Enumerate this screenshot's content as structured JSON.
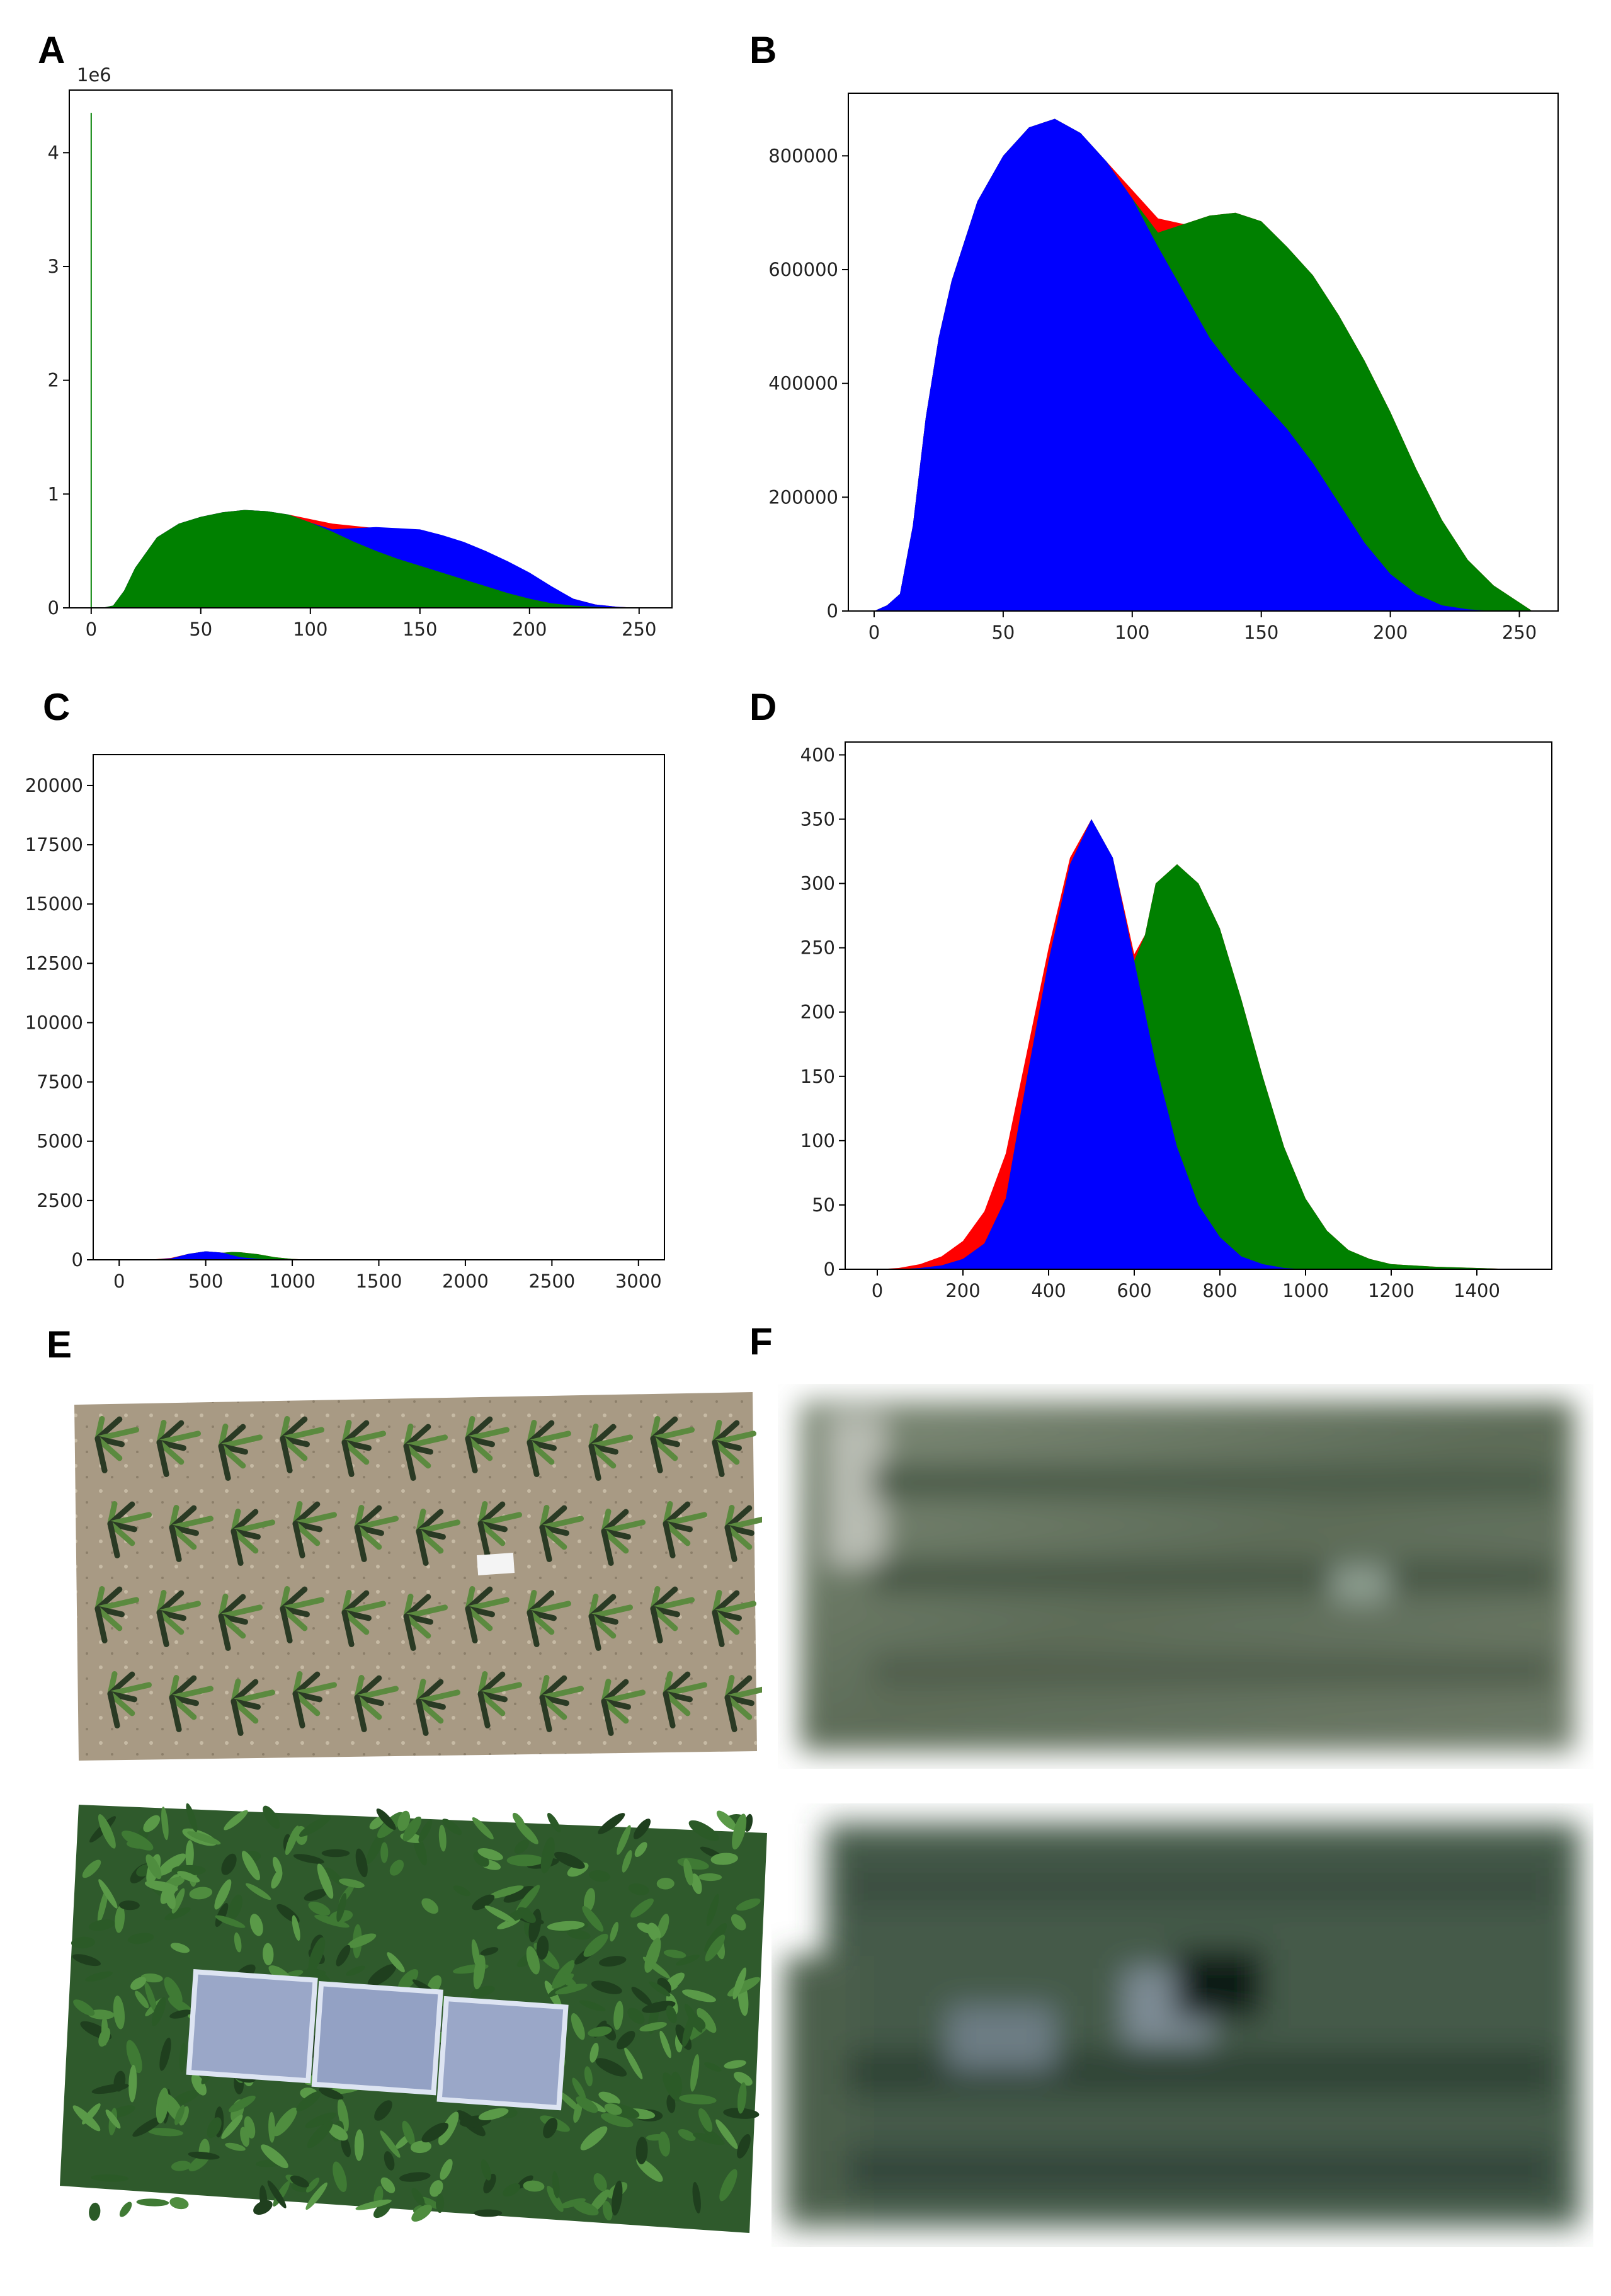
{
  "panels": {
    "A": "A",
    "B": "B",
    "C": "C",
    "D": "D",
    "E": "E",
    "F": "F"
  },
  "colors": {
    "red": "#ff0000",
    "green": "#008000",
    "blue": "#0000ff"
  },
  "chart_data": [
    {
      "panel": "A",
      "type": "area",
      "title": "",
      "xlabel": "",
      "ylabel": "",
      "offset_label": "1e6",
      "xlim": [
        -10,
        265
      ],
      "ylim": [
        0,
        4.55
      ],
      "xticks": [
        0,
        50,
        100,
        150,
        200,
        250
      ],
      "yticks": [
        0,
        1,
        2,
        3,
        4
      ],
      "grid": false,
      "spike": {
        "x": 0,
        "y": 4.35,
        "series": "green"
      },
      "x": [
        0,
        5,
        10,
        15,
        20,
        30,
        40,
        50,
        60,
        70,
        80,
        90,
        100,
        110,
        120,
        130,
        140,
        150,
        160,
        170,
        180,
        190,
        200,
        210,
        220,
        230,
        240,
        250,
        255
      ],
      "series": [
        {
          "color": "red",
          "values": [
            0,
            0,
            0.02,
            0.15,
            0.35,
            0.62,
            0.74,
            0.8,
            0.84,
            0.86,
            0.85,
            0.82,
            0.78,
            0.74,
            0.72,
            0.7,
            0.69,
            0.68,
            0.63,
            0.57,
            0.49,
            0.4,
            0.3,
            0.18,
            0.08,
            0.03,
            0.01,
            0,
            0
          ]
        },
        {
          "color": "blue",
          "values": [
            0,
            0,
            0.02,
            0.15,
            0.35,
            0.62,
            0.74,
            0.8,
            0.84,
            0.86,
            0.85,
            0.82,
            0.75,
            0.69,
            0.7,
            0.71,
            0.7,
            0.69,
            0.64,
            0.58,
            0.5,
            0.41,
            0.31,
            0.19,
            0.08,
            0.03,
            0.01,
            0,
            0
          ]
        },
        {
          "color": "green",
          "values": [
            0,
            0,
            0.02,
            0.15,
            0.35,
            0.62,
            0.74,
            0.8,
            0.84,
            0.86,
            0.85,
            0.82,
            0.75,
            0.67,
            0.58,
            0.5,
            0.43,
            0.37,
            0.31,
            0.25,
            0.19,
            0.13,
            0.08,
            0.04,
            0.02,
            0.01,
            0,
            0,
            0
          ]
        }
      ]
    },
    {
      "panel": "B",
      "type": "area",
      "title": "",
      "xlabel": "",
      "ylabel": "",
      "xlim": [
        -10,
        265
      ],
      "ylim": [
        0,
        910000
      ],
      "xticks": [
        0,
        50,
        100,
        150,
        200,
        250
      ],
      "yticks": [
        0,
        200000,
        400000,
        600000,
        800000
      ],
      "grid": false,
      "x": [
        0,
        5,
        10,
        15,
        20,
        25,
        30,
        40,
        50,
        60,
        70,
        80,
        90,
        100,
        110,
        120,
        130,
        140,
        150,
        160,
        170,
        180,
        190,
        200,
        210,
        220,
        230,
        240,
        250,
        255
      ],
      "series": [
        {
          "color": "red",
          "values": [
            0,
            10000,
            30000,
            150000,
            340000,
            480000,
            580000,
            720000,
            800000,
            850000,
            865000,
            840000,
            790000,
            740000,
            690000,
            680000,
            695000,
            700000,
            685000,
            640000,
            590000,
            520000,
            440000,
            350000,
            250000,
            160000,
            90000,
            45000,
            15000,
            0
          ]
        },
        {
          "color": "green",
          "values": [
            0,
            10000,
            30000,
            150000,
            340000,
            480000,
            580000,
            720000,
            800000,
            850000,
            865000,
            840000,
            790000,
            725000,
            665000,
            680000,
            695000,
            700000,
            685000,
            640000,
            590000,
            520000,
            440000,
            350000,
            250000,
            160000,
            90000,
            45000,
            15000,
            0
          ]
        },
        {
          "color": "blue",
          "values": [
            0,
            10000,
            30000,
            150000,
            340000,
            480000,
            580000,
            720000,
            800000,
            850000,
            865000,
            840000,
            790000,
            725000,
            640000,
            560000,
            480000,
            420000,
            370000,
            320000,
            260000,
            190000,
            120000,
            65000,
            30000,
            10000,
            3000,
            0,
            0,
            0
          ]
        }
      ]
    },
    {
      "panel": "C",
      "type": "area",
      "title": "",
      "xlabel": "",
      "ylabel": "",
      "xlim": [
        -150,
        3150
      ],
      "ylim": [
        0,
        21300
      ],
      "xticks": [
        0,
        500,
        1000,
        1500,
        2000,
        2500,
        3000
      ],
      "yticks": [
        0,
        2500,
        5000,
        7500,
        10000,
        12500,
        15000,
        17500,
        20000
      ],
      "grid": false,
      "x": [
        0,
        100,
        200,
        300,
        400,
        500,
        600,
        650,
        700,
        800,
        900,
        1000,
        1100,
        1200,
        1400
      ],
      "series": [
        {
          "color": "red",
          "values": [
            0,
            5,
            20,
            80,
            250,
            360,
            300,
            330,
            320,
            240,
            110,
            35,
            10,
            3,
            0
          ]
        },
        {
          "color": "green",
          "values": [
            0,
            5,
            15,
            60,
            250,
            360,
            300,
            330,
            320,
            240,
            110,
            35,
            10,
            3,
            0
          ]
        },
        {
          "color": "blue",
          "values": [
            0,
            3,
            10,
            55,
            250,
            360,
            300,
            200,
            110,
            40,
            10,
            3,
            0,
            0,
            0
          ]
        }
      ]
    },
    {
      "panel": "D",
      "type": "area",
      "title": "",
      "xlabel": "",
      "ylabel": "",
      "xlim": [
        -75,
        1575
      ],
      "ylim": [
        0,
        410
      ],
      "xticks": [
        0,
        200,
        400,
        600,
        800,
        1000,
        1200,
        1400
      ],
      "yticks": [
        0,
        50,
        100,
        150,
        200,
        250,
        300,
        350,
        400
      ],
      "grid": false,
      "x": [
        0,
        50,
        100,
        150,
        200,
        250,
        300,
        350,
        400,
        450,
        500,
        550,
        600,
        625,
        650,
        700,
        750,
        800,
        850,
        900,
        950,
        1000,
        1050,
        1100,
        1150,
        1200,
        1300,
        1400,
        1500
      ],
      "series": [
        {
          "color": "red",
          "values": [
            0,
            1,
            4,
            10,
            22,
            45,
            90,
            170,
            250,
            320,
            350,
            320,
            245,
            260,
            300,
            315,
            300,
            265,
            210,
            150,
            95,
            55,
            30,
            15,
            8,
            4,
            2,
            1,
            0
          ]
        },
        {
          "color": "green",
          "values": [
            0,
            0,
            1,
            3,
            8,
            20,
            55,
            150,
            240,
            315,
            350,
            320,
            240,
            260,
            300,
            315,
            300,
            265,
            210,
            150,
            95,
            55,
            30,
            15,
            8,
            4,
            2,
            1,
            0
          ]
        },
        {
          "color": "blue",
          "values": [
            0,
            0,
            1,
            3,
            8,
            20,
            55,
            150,
            240,
            315,
            350,
            320,
            240,
            200,
            160,
            95,
            50,
            25,
            10,
            4,
            1,
            0,
            0,
            0,
            0,
            0,
            0,
            0,
            0
          ]
        }
      ]
    }
  ]
}
